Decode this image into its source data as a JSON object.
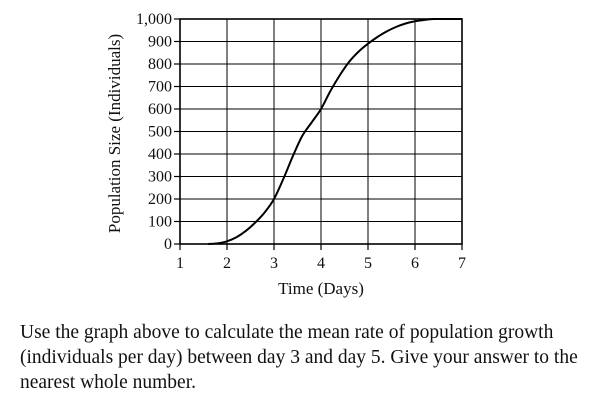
{
  "chart_data": {
    "type": "line",
    "xlabel": "Time (Days)",
    "ylabel": "Population Size (Individuals)",
    "xlim": [
      1,
      7
    ],
    "ylim": [
      0,
      1000
    ],
    "x_ticks": [
      1,
      2,
      3,
      4,
      5,
      6,
      7
    ],
    "x_tick_labels": [
      "1",
      "2",
      "3",
      "4",
      "5",
      "6",
      "7"
    ],
    "y_ticks": [
      0,
      100,
      200,
      300,
      400,
      500,
      600,
      700,
      800,
      900,
      1000
    ],
    "y_tick_labels": [
      "0",
      "100",
      "200",
      "300",
      "400",
      "500",
      "600",
      "700",
      "800",
      "900",
      "1,000"
    ],
    "grid": true,
    "legend": "none",
    "line_color": "#000000",
    "series": [
      {
        "x": [
          1.6,
          1.8,
          2.0,
          2.2,
          2.4,
          2.6,
          2.8,
          3.0,
          3.2,
          3.4,
          3.6,
          3.8,
          4.0,
          4.2,
          4.4,
          4.6,
          4.8,
          5.0,
          5.2,
          5.4,
          5.6,
          5.8,
          6.0,
          6.2,
          6.4,
          6.6,
          6.8,
          7.0
        ],
        "y": [
          0,
          3,
          12,
          30,
          58,
          95,
          140,
          200,
          290,
          390,
          480,
          540,
          600,
          680,
          750,
          810,
          855,
          890,
          920,
          945,
          965,
          980,
          990,
          996,
          1000,
          1000,
          1000,
          1000
        ]
      }
    ]
  },
  "question": "Use the graph above to calculate the mean rate of population growth (individuals per day) between day 3 and day 5. Give your answer to the nearest whole number."
}
